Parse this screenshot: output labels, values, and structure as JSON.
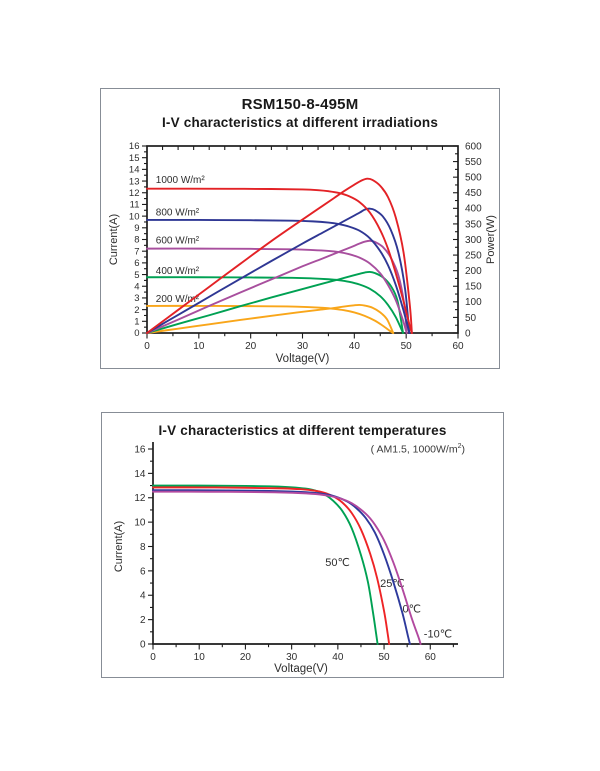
{
  "palette": {
    "axis": "#1c1c1c",
    "tick_text": "#2e2e2e",
    "series_label_text": "#3d3d3d",
    "panel_border": "#878d96",
    "background": "#ffffff"
  },
  "chart_data": [
    {
      "type": "line",
      "name": "iv-characteristics-irradiation",
      "title": "RSM150-8-495M",
      "subtitle": "I-V characteristics at different irradiations",
      "x_axis": {
        "label": "Voltage(V)",
        "min": 0,
        "max": 60,
        "ticks": [
          0,
          10,
          20,
          30,
          40,
          50,
          60
        ],
        "minor_step": 5,
        "top_tick_step": 3
      },
      "y_left": {
        "label": "Current(A)",
        "min": 0,
        "max": 16,
        "ticks": [
          0,
          1,
          2,
          3,
          4,
          5,
          6,
          7,
          8,
          9,
          10,
          11,
          12,
          13,
          14,
          15,
          16
        ],
        "minor_step": 0.5
      },
      "y_right": {
        "label": "Power(W)",
        "min": 0,
        "max": 600,
        "ticks": [
          0,
          50,
          100,
          150,
          200,
          250,
          300,
          350,
          400,
          450,
          500,
          550,
          600
        ],
        "minor_step": 25
      },
      "grid": false,
      "series": [
        {
          "label": "200 W/m²",
          "color": "#f9a61a",
          "isc_A": 2.32,
          "voc_V": 47.5,
          "pmax_W": 90,
          "label_pos": [
            1.7,
            2.95
          ],
          "iv": [
            [
              0,
              2.32
            ],
            [
              10,
              2.32
            ],
            [
              20,
              2.3
            ],
            [
              27,
              2.27
            ],
            [
              31,
              2.22
            ],
            [
              34,
              2.15
            ],
            [
              36,
              2.07
            ],
            [
              38,
              1.95
            ],
            [
              40,
              1.76
            ],
            [
              42,
              1.47
            ],
            [
              44,
              1.05
            ],
            [
              45.5,
              0.62
            ],
            [
              46.8,
              0.2
            ],
            [
              47.5,
              0
            ]
          ],
          "pv": [
            [
              0,
              0
            ],
            [
              6,
              14
            ],
            [
              12,
              28
            ],
            [
              18,
              42
            ],
            [
              24,
              55
            ],
            [
              29,
              66
            ],
            [
              33,
              74
            ],
            [
              36,
              80
            ],
            [
              38,
              85
            ],
            [
              40,
              89
            ],
            [
              41,
              90
            ],
            [
              42,
              88
            ],
            [
              43.5,
              81
            ],
            [
              45,
              66
            ],
            [
              46.3,
              44
            ],
            [
              47.5,
              0
            ]
          ]
        },
        {
          "label": "400 W/m²",
          "color": "#00a153",
          "isc_A": 4.77,
          "voc_V": 49.4,
          "pmax_W": 196,
          "label_pos": [
            1.7,
            5.35
          ],
          "iv": [
            [
              0,
              4.77
            ],
            [
              10,
              4.77
            ],
            [
              20,
              4.75
            ],
            [
              28,
              4.72
            ],
            [
              32,
              4.67
            ],
            [
              35,
              4.6
            ],
            [
              37,
              4.52
            ],
            [
              39,
              4.38
            ],
            [
              41,
              4.15
            ],
            [
              43,
              3.78
            ],
            [
              45,
              3.15
            ],
            [
              46.5,
              2.4
            ],
            [
              48,
              1.35
            ],
            [
              49.4,
              0
            ]
          ],
          "pv": [
            [
              0,
              0
            ],
            [
              6,
              29
            ],
            [
              12,
              57
            ],
            [
              18,
              86
            ],
            [
              24,
              114
            ],
            [
              30,
              141
            ],
            [
              34,
              159
            ],
            [
              37,
              172
            ],
            [
              39,
              181
            ],
            [
              41,
              190
            ],
            [
              42,
              194
            ],
            [
              43,
              196
            ],
            [
              44,
              192
            ],
            [
              45.5,
              179
            ],
            [
              47,
              152
            ],
            [
              48.3,
              105
            ],
            [
              49.4,
              0
            ]
          ]
        },
        {
          "label": "600 W/m²",
          "color": "#a84f9e",
          "isc_A": 7.22,
          "voc_V": 50.1,
          "pmax_W": 296,
          "label_pos": [
            1.7,
            7.95
          ],
          "iv": [
            [
              0,
              7.22
            ],
            [
              10,
              7.22
            ],
            [
              20,
              7.2
            ],
            [
              28,
              7.16
            ],
            [
              32,
              7.1
            ],
            [
              35,
              7.02
            ],
            [
              37,
              6.92
            ],
            [
              39,
              6.74
            ],
            [
              41,
              6.45
            ],
            [
              43,
              5.95
            ],
            [
              45,
              5.1
            ],
            [
              46.5,
              4.1
            ],
            [
              48,
              2.8
            ],
            [
              49.3,
              1.2
            ],
            [
              50.1,
              0
            ]
          ],
          "pv": [
            [
              0,
              0
            ],
            [
              6,
              43
            ],
            [
              12,
              87
            ],
            [
              18,
              130
            ],
            [
              24,
              172
            ],
            [
              30,
              214
            ],
            [
              34,
              240
            ],
            [
              37,
              260
            ],
            [
              39,
              273
            ],
            [
              41,
              287
            ],
            [
              42,
              293
            ],
            [
              43,
              296
            ],
            [
              44,
              292
            ],
            [
              45.5,
              276
            ],
            [
              47,
              243
            ],
            [
              48.5,
              185
            ],
            [
              49.6,
              95
            ],
            [
              50.1,
              0
            ]
          ]
        },
        {
          "label": "800 W/m²",
          "color": "#2f3794",
          "isc_A": 9.67,
          "voc_V": 50.6,
          "pmax_W": 399,
          "label_pos": [
            1.7,
            10.35
          ],
          "iv": [
            [
              0,
              9.67
            ],
            [
              10,
              9.67
            ],
            [
              20,
              9.65
            ],
            [
              28,
              9.61
            ],
            [
              32,
              9.55
            ],
            [
              35,
              9.45
            ],
            [
              37,
              9.32
            ],
            [
              39,
              9.1
            ],
            [
              41,
              8.75
            ],
            [
              43,
              8.1
            ],
            [
              45,
              7.0
            ],
            [
              46.5,
              5.8
            ],
            [
              48,
              4.1
            ],
            [
              49.5,
              1.9
            ],
            [
              50.6,
              0
            ]
          ],
          "pv": [
            [
              0,
              0
            ],
            [
              6,
              58
            ],
            [
              12,
              116
            ],
            [
              18,
              174
            ],
            [
              24,
              231
            ],
            [
              30,
              287
            ],
            [
              34,
              323
            ],
            [
              37,
              350
            ],
            [
              39,
              368
            ],
            [
              41,
              386
            ],
            [
              42,
              396
            ],
            [
              43,
              399
            ],
            [
              44,
              394
            ],
            [
              45.5,
              374
            ],
            [
              47,
              332
            ],
            [
              48.5,
              258
            ],
            [
              49.8,
              140
            ],
            [
              50.6,
              0
            ]
          ]
        },
        {
          "label": "1000 W/m²",
          "color": "#e32226",
          "isc_A": 12.35,
          "voc_V": 51.1,
          "pmax_W": 495,
          "label_pos": [
            1.7,
            13.15
          ],
          "iv": [
            [
              0,
              12.35
            ],
            [
              8,
              12.35
            ],
            [
              16,
              12.34
            ],
            [
              24,
              12.32
            ],
            [
              30,
              12.28
            ],
            [
              33,
              12.22
            ],
            [
              35,
              12.13
            ],
            [
              37,
              11.98
            ],
            [
              39,
              11.7
            ],
            [
              41,
              11.2
            ],
            [
              43,
              10.3
            ],
            [
              45,
              8.8
            ],
            [
              46.5,
              7.2
            ],
            [
              48,
              5.1
            ],
            [
              49.5,
              2.7
            ],
            [
              50.7,
              0.6
            ],
            [
              51.1,
              0
            ]
          ],
          "pv": [
            [
              0,
              0
            ],
            [
              6,
              74
            ],
            [
              12,
              148
            ],
            [
              18,
              222
            ],
            [
              24,
              295
            ],
            [
              30,
              364
            ],
            [
              33,
              398
            ],
            [
              36,
              432
            ],
            [
              38,
              455
            ],
            [
              40,
              476
            ],
            [
              41.5,
              490
            ],
            [
              42.5,
              495
            ],
            [
              43.5,
              491
            ],
            [
              45,
              472
            ],
            [
              46.5,
              436
            ],
            [
              48,
              370
            ],
            [
              49.5,
              258
            ],
            [
              50.7,
              90
            ],
            [
              51.1,
              0
            ]
          ]
        }
      ]
    },
    {
      "type": "line",
      "name": "iv-characteristics-temperature",
      "title": "I-V characteristics at different temperatures",
      "subtitle_pre": "( AM1.5,  1000W/m",
      "subtitle_sup": "2",
      "subtitle_post": ")",
      "x_axis": {
        "label": "Voltage(V)",
        "min": 0,
        "max": 66,
        "ticks": [
          0,
          10,
          20,
          30,
          40,
          50,
          60
        ],
        "minor_step": 5
      },
      "y_left": {
        "label": "Current(A)",
        "min": 0,
        "max": 16,
        "ticks": [
          0,
          2,
          4,
          6,
          8,
          10,
          12,
          14,
          16
        ],
        "minor_step": 1
      },
      "grid": false,
      "series": [
        {
          "label": "50℃",
          "color": "#00a153",
          "isc_A": 13.0,
          "voc_V": 48.6,
          "label_pos": [
            42.6,
            6.7
          ],
          "label_anchor": "end",
          "iv": [
            [
              0,
              13.0
            ],
            [
              10,
              13.0
            ],
            [
              20,
              12.97
            ],
            [
              26,
              12.93
            ],
            [
              30,
              12.86
            ],
            [
              33,
              12.75
            ],
            [
              35,
              12.6
            ],
            [
              37,
              12.3
            ],
            [
              39,
              11.75
            ],
            [
              41,
              10.9
            ],
            [
              43,
              9.5
            ],
            [
              45,
              7.3
            ],
            [
              46.5,
              5.1
            ],
            [
              47.6,
              2.6
            ],
            [
              48.3,
              0.8
            ],
            [
              48.6,
              0
            ]
          ]
        },
        {
          "label": "25℃",
          "color": "#ee2426",
          "isc_A": 12.85,
          "voc_V": 51.1,
          "label_pos": [
            51.8,
            5.0
          ],
          "label_anchor": "middle",
          "iv": [
            [
              0,
              12.85
            ],
            [
              10,
              12.85
            ],
            [
              20,
              12.82
            ],
            [
              28,
              12.77
            ],
            [
              32,
              12.7
            ],
            [
              35,
              12.58
            ],
            [
              37,
              12.42
            ],
            [
              39,
              12.12
            ],
            [
              41,
              11.6
            ],
            [
              43,
              10.75
            ],
            [
              45,
              9.4
            ],
            [
              47,
              7.4
            ],
            [
              48.5,
              5.4
            ],
            [
              50,
              2.7
            ],
            [
              50.8,
              0.8
            ],
            [
              51.1,
              0
            ]
          ]
        },
        {
          "label": "0℃",
          "color": "#2e3a9c",
          "isc_A": 12.62,
          "voc_V": 55.6,
          "label_pos": [
            56.0,
            2.9
          ],
          "label_anchor": "middle",
          "iv": [
            [
              0,
              12.62
            ],
            [
              12,
              12.61
            ],
            [
              24,
              12.57
            ],
            [
              32,
              12.48
            ],
            [
              36,
              12.36
            ],
            [
              39,
              12.15
            ],
            [
              42,
              11.7
            ],
            [
              44,
              11.15
            ],
            [
              46,
              10.35
            ],
            [
              48,
              9.15
            ],
            [
              50,
              7.35
            ],
            [
              52,
              5.1
            ],
            [
              54,
              2.5
            ],
            [
              55.2,
              0.6
            ],
            [
              55.6,
              0
            ]
          ]
        },
        {
          "label": "-10℃",
          "color": "#b2499f",
          "isc_A": 12.5,
          "voc_V": 57.9,
          "label_pos": [
            58.6,
            0.85
          ],
          "label_anchor": "start",
          "iv": [
            [
              0,
              12.5
            ],
            [
              12,
              12.49
            ],
            [
              24,
              12.46
            ],
            [
              32,
              12.38
            ],
            [
              36,
              12.27
            ],
            [
              40,
              12.0
            ],
            [
              43,
              11.55
            ],
            [
              46,
              10.7
            ],
            [
              48,
              9.8
            ],
            [
              50,
              8.5
            ],
            [
              52,
              6.7
            ],
            [
              54,
              4.5
            ],
            [
              56,
              2.1
            ],
            [
              57.5,
              0.5
            ],
            [
              57.9,
              0
            ]
          ]
        }
      ]
    }
  ]
}
